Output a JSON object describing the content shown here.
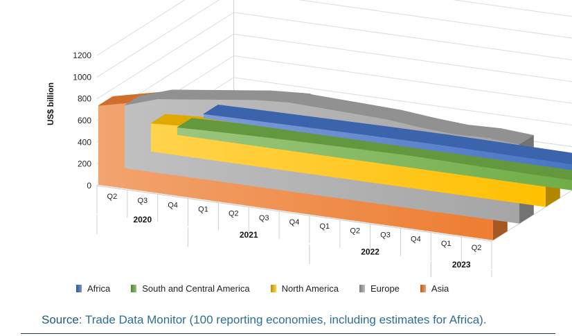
{
  "chart_data": {
    "type": "area",
    "ylabel": "US$ billion",
    "ylim": [
      0,
      1200
    ],
    "yticks": [
      0,
      200,
      400,
      600,
      800,
      1000,
      1200
    ],
    "categories": [
      "Q2",
      "Q3",
      "Q4",
      "Q1",
      "Q2",
      "Q3",
      "Q4",
      "Q1",
      "Q2",
      "Q3",
      "Q4",
      "Q1",
      "Q2"
    ],
    "years": [
      {
        "label": "2020",
        "start": 0,
        "end": 2
      },
      {
        "label": "2021",
        "start": 3,
        "end": 6
      },
      {
        "label": "2022",
        "start": 7,
        "end": 10
      },
      {
        "label": "2023",
        "start": 11,
        "end": 12
      }
    ],
    "grid": true,
    "legend_position": "bottom",
    "series": [
      {
        "name": "Africa",
        "color": "#4472c4",
        "values": [
          40,
          45,
          48,
          52,
          55,
          58,
          60,
          62,
          60,
          58,
          56,
          54,
          52
        ]
      },
      {
        "name": "South and Central America",
        "color": "#70ad47",
        "values": [
          70,
          80,
          88,
          95,
          100,
          105,
          108,
          112,
          108,
          104,
          100,
          97,
          95
        ]
      },
      {
        "name": "North America",
        "color": "#ffc000",
        "values": [
          260,
          280,
          285,
          290,
          300,
          305,
          300,
          295,
          300,
          310,
          320,
          315,
          310
        ]
      },
      {
        "name": "Europe",
        "color": "#a5a5a5",
        "values": [
          580,
          680,
          720,
          760,
          800,
          820,
          810,
          800,
          790,
          760,
          740,
          750,
          730
        ]
      },
      {
        "name": "Asia",
        "color": "#ed7d31",
        "values": [
          730,
          800,
          870,
          880,
          950,
          990,
          1010,
          900,
          920,
          880,
          830,
          780,
          790
        ]
      }
    ]
  },
  "source": {
    "lead": "Source",
    "text": ": Trade Data Monitor (100 reporting economies, including estimates for Africa)."
  }
}
